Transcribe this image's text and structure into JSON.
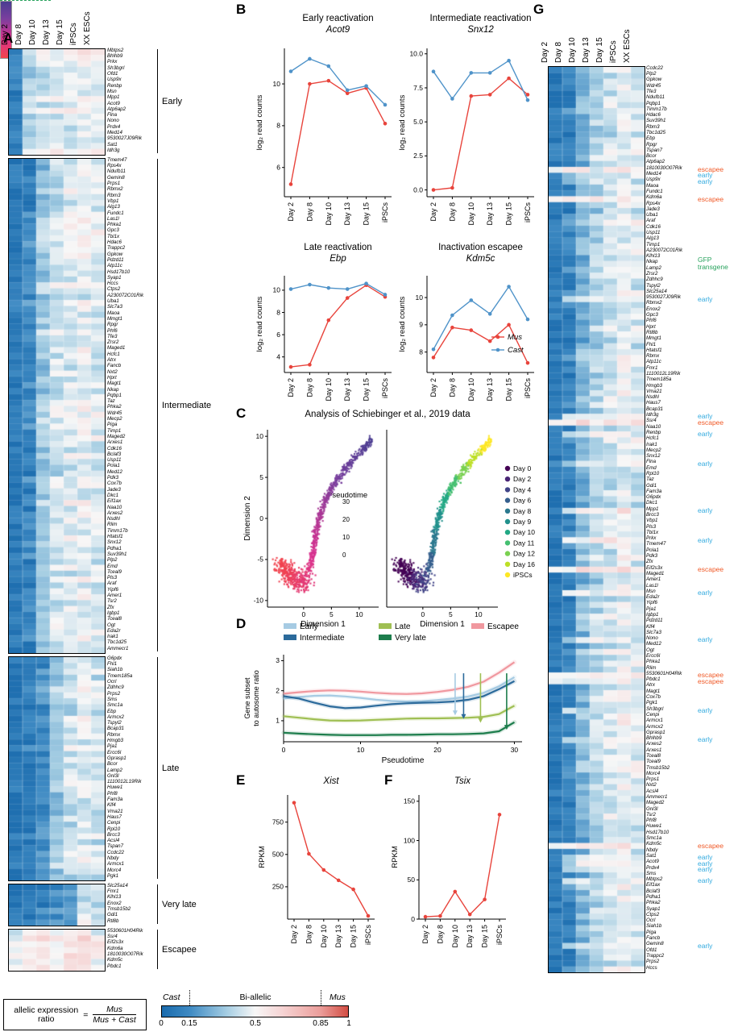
{
  "panels": {
    "a": "A",
    "b": "B",
    "c": "C",
    "d": "D",
    "e": "E",
    "f": "F",
    "g": "G"
  },
  "heatmap_columns": [
    "Day 2",
    "Day 8",
    "Day 10",
    "Day 13",
    "Day 15",
    "iPSCs",
    "XX ESCs"
  ],
  "xcats": [
    "Day 2",
    "Day 8",
    "Day 10",
    "Day 13",
    "Day 15",
    "iPSCs"
  ],
  "panel_a": {
    "groups": [
      {
        "label": "Early",
        "genes": [
          "Mbtps2",
          "Bhlhb9",
          "Prkx",
          "Sh3bgrl",
          "Ofd1",
          "Usp9x",
          "Renbp",
          "Msn",
          "Mpp1",
          "Acot9",
          "Atp6ap2",
          "Flna",
          "Nono",
          "Prdx4",
          "Med14",
          "9530027J09Rik",
          "Sat1",
          "Idh3g"
        ]
      },
      {
        "label": "Intermediate",
        "genes": [
          "Tmem47",
          "Rps4x",
          "Ndufb11",
          "Gemin8",
          "Prps1",
          "Rbmx2",
          "Rbm3",
          "Vbp1",
          "Alg13",
          "Fundc1",
          "Las1l",
          "Phka1",
          "Gpc3",
          "Tbl1x",
          "Hdac6",
          "Trappc2",
          "Gpkow",
          "Pdzd11",
          "Atp11c",
          "Hsd17b10",
          "Syap1",
          "Hccs",
          "Ctps2",
          "A230072C01Rik",
          "Uba1",
          "Slc7a3",
          "Maoa",
          "Mmgt1",
          "Rpgr",
          "Phf6",
          "Tfe3",
          "Zrsr2",
          "Maged1",
          "Hcfc1",
          "Atrx",
          "Fancb",
          "Nxt2",
          "Hprt",
          "Magt1",
          "Nkap",
          "Pqbp1",
          "Taz",
          "Phka2",
          "Wdr45",
          "Mecp2",
          "Piga",
          "Timp1",
          "Maged2",
          "Arxes1",
          "Cdk16",
          "Bclaf3",
          "Usp11",
          "Pola1",
          "Med12",
          "Pdk3",
          "Cox7b",
          "Jade3",
          "Dkc1",
          "Eif1ax",
          "Naa10",
          "Arxes2",
          "Nsdhl",
          "Rlim",
          "Timm17b",
          "Htatsf1",
          "Snx12",
          "Pdha1",
          "Suv39h1",
          "Plp2",
          "Emd",
          "Tceal9",
          "Pls3",
          "Araf",
          "Yipf6",
          "Amer1",
          "Tsr2",
          "Zfx",
          "Igbp1",
          "Tceal8",
          "Ogt",
          "Eda2r",
          "Irak1",
          "Tbc1d25",
          "Ammecr1"
        ]
      },
      {
        "label": "Late",
        "genes": [
          "G6pdx",
          "Fhl1",
          "Siah1b",
          "Tmem185a",
          "Ocrl",
          "Zdhhc9",
          "Prps2",
          "Sms",
          "Smc1a",
          "Ebp",
          "Armcx2",
          "Tspyl2",
          "Bcap31",
          "Rbmx",
          "Hmgb3",
          "Pja1",
          "Ercc6l",
          "Gprasp1",
          "Bcor",
          "Lamp2",
          "Gnl3l",
          "1110012L19Rik",
          "Huwe1",
          "Phf8",
          "Fam3a",
          "Klf4",
          "Vma21",
          "Haus7",
          "Cenpi",
          "Rpl10",
          "Brcc3",
          "Acsl4",
          "Tspan7",
          "Ccdc22",
          "Nbdy",
          "Armcx1",
          "Morc4",
          "Pgk1"
        ]
      },
      {
        "label": "Very late",
        "genes": [
          "Slc25a14",
          "Fmr1",
          "Klhl13",
          "Enox2",
          "Tmsb15b2",
          "Gdi1",
          "Rtl8b"
        ]
      },
      {
        "label": "Escapee",
        "genes": [
          "5530601H04Rik",
          "Ssr4",
          "Eif2s3x",
          "Kdm6a",
          "1810030O07Rik",
          "Kdm5c",
          "Pbdc1"
        ]
      }
    ]
  },
  "panel_g": {
    "genes": [
      "Ccdc22",
      "Plp2",
      "Gpkow",
      "Wdr45",
      "Tfe3",
      "Ndufb11",
      "Pqbp1",
      "Timm17b",
      "Hdac6",
      "Suv39h1",
      "Rbm3",
      "Tbc1d25",
      "Ebp",
      "Rpgr",
      "Tspan7",
      "Bcor",
      "Atp6ap2",
      "1810030O07Rik",
      "Med14",
      "Usp9x",
      "Maoa",
      "Fundc1",
      "Kdm6a",
      "Rps4x",
      "Jade3",
      "Uba1",
      "Araf",
      "Cdk16",
      "Usp11",
      "Alg13",
      "Timp1",
      "A230072C01Rik",
      "Klhl13",
      "Nkap",
      "Lamp2",
      "Zrsr2",
      "Zdhhc9",
      "Tspyl2",
      "Slc25a14",
      "9530027J09Rik",
      "Rbmx2",
      "Enox2",
      "Gpc3",
      "Phf6",
      "Hprt",
      "Rtl8b",
      "Mmgt1",
      "Fhl1",
      "Htatsf1",
      "Rbmx",
      "Atp11c",
      "Fmr1",
      "1110012L19Rik",
      "Tmem185a",
      "Hmgb3",
      "Vma21",
      "Nsdhl",
      "Haus7",
      "Bcap31",
      "Idh3g",
      "Ssr4",
      "Naa10",
      "Renbp",
      "Hcfc1",
      "Irak1",
      "Mecp2",
      "Snx12",
      "Flna",
      "Emd",
      "Rpl10",
      "Taz",
      "Gdi1",
      "Fam3a",
      "G6pdx",
      "Dkc1",
      "Mpp1",
      "Brcc3",
      "Vbp1",
      "Pls3",
      "Tbl1x",
      "Prkx",
      "Tmem47",
      "Pola1",
      "Pdk3",
      "Zfx",
      "Eif2s3x",
      "Maged1",
      "Amer1",
      "Las1l",
      "Msn",
      "Eda2r",
      "Yipf6",
      "Pja1",
      "Igbp1",
      "Pdzd11",
      "Klf4",
      "Slc7a3",
      "Nono",
      "Med12",
      "Ogt",
      "Ercc6l",
      "Phka1",
      "Rlim",
      "5530601H04Rik",
      "Pbdc1",
      "Atrx",
      "Magt1",
      "Cox7b",
      "Pgk1",
      "Sh3bgrl",
      "Cenpi",
      "Armcx1",
      "Armcx2",
      "Gprasp1",
      "Bhlhb9",
      "Arxes2",
      "Arxes1",
      "Tceal8",
      "Tceal9",
      "Tmsb15b2",
      "Morc4",
      "Prps1",
      "Nxt2",
      "Acsl4",
      "Ammecr1",
      "Maged2",
      "Gnl3l",
      "Tsr2",
      "Phf8",
      "Huwe1",
      "Hsd17b10",
      "Smc1a",
      "Kdm5c",
      "Nbdy",
      "Sat1",
      "Acot9",
      "Prdx4",
      "Sms",
      "Mbtps2",
      "Eif1ax",
      "Bclaf3",
      "Pdha1",
      "Phka2",
      "Syap1",
      "Ctps2",
      "Ocrl",
      "Siah1b",
      "Piga",
      "Fancb",
      "Gemin8",
      "Ofd1",
      "Trappc2",
      "Prps2",
      "Hccs"
    ],
    "annotations": [
      {
        "row": 17,
        "type": "escapee"
      },
      {
        "row": 18,
        "type": "early"
      },
      {
        "row": 19,
        "type": "early"
      },
      {
        "row": 22,
        "type": "escapee"
      },
      {
        "row": 33,
        "type": "gfp"
      },
      {
        "row": 39,
        "type": "early"
      },
      {
        "row": 59,
        "type": "early"
      },
      {
        "row": 60,
        "type": "escapee"
      },
      {
        "row": 62,
        "type": "early"
      },
      {
        "row": 67,
        "type": "early"
      },
      {
        "row": 75,
        "type": "early"
      },
      {
        "row": 80,
        "type": "early"
      },
      {
        "row": 85,
        "type": "escapee"
      },
      {
        "row": 89,
        "type": "early"
      },
      {
        "row": 97,
        "type": "early"
      },
      {
        "row": 103,
        "type": "escapee"
      },
      {
        "row": 104,
        "type": "escapee"
      },
      {
        "row": 109,
        "type": "early"
      },
      {
        "row": 114,
        "type": "early"
      },
      {
        "row": 132,
        "type": "escapee"
      },
      {
        "row": 134,
        "type": "early"
      },
      {
        "row": 135,
        "type": "early"
      },
      {
        "row": 136,
        "type": "early"
      },
      {
        "row": 138,
        "type": "early"
      },
      {
        "row": 149,
        "type": "early"
      }
    ],
    "annotation_labels": {
      "early": "early",
      "escapee": "escapee",
      "gfp_line1": "GFP",
      "gfp_line2": "transgene"
    }
  },
  "heatmap_profiles": {
    "Early": [
      0.1,
      0.38,
      0.44,
      0.47,
      0.48,
      0.52,
      0.47
    ],
    "Intermediate": [
      0.07,
      0.13,
      0.33,
      0.42,
      0.45,
      0.48,
      0.45
    ],
    "Late": [
      0.06,
      0.09,
      0.17,
      0.33,
      0.42,
      0.47,
      0.43
    ],
    "Very late": [
      0.06,
      0.07,
      0.09,
      0.13,
      0.22,
      0.44,
      0.4
    ],
    "Escapee": [
      0.46,
      0.52,
      0.55,
      0.52,
      0.54,
      0.57,
      0.52
    ],
    "G-default": [
      0.07,
      0.12,
      0.28,
      0.38,
      0.43,
      0.47,
      0.44
    ]
  },
  "chart_data": [
    {
      "id": "acot9",
      "type": "line",
      "title": "Early reactivation",
      "gene": "Acot9",
      "ylabel": "log₂ read counts",
      "x": [
        "Day 2",
        "Day 8",
        "Day 10",
        "Day 13",
        "Day 15",
        "iPSCs"
      ],
      "series": [
        {
          "name": "Mus",
          "color": "#e8443c",
          "values": [
            5.2,
            10,
            10.15,
            9.55,
            9.8,
            8.1
          ]
        },
        {
          "name": "Cast",
          "color": "#4f93c9",
          "values": [
            10.6,
            11.2,
            10.85,
            9.7,
            9.9,
            9
          ]
        }
      ],
      "ylim": [
        4.6,
        11.7
      ],
      "yticks": [
        6,
        8,
        10
      ]
    },
    {
      "id": "snx12",
      "type": "line",
      "title": "Intermediate reactivation",
      "gene": "Snx12",
      "ylabel": "log₂ read counts",
      "x": [
        "Day 2",
        "Day 8",
        "Day 10",
        "Day 13",
        "Day 15",
        "iPSCs"
      ],
      "series": [
        {
          "name": "Mus",
          "color": "#e8443c",
          "values": [
            0,
            0.15,
            6.9,
            7,
            8.2,
            7
          ]
        },
        {
          "name": "Cast",
          "color": "#4f93c9",
          "values": [
            8.7,
            6.7,
            8.6,
            8.6,
            9.5,
            6.6
          ]
        }
      ],
      "ylim": [
        -0.5,
        10.4
      ],
      "yticks": [
        "0.0",
        "2.5",
        "5.0",
        "7.5",
        "10.0"
      ]
    },
    {
      "id": "ebp",
      "type": "line",
      "title": "Late reactivation",
      "gene": "Ebp",
      "ylabel": "log₂ read counts",
      "x": [
        "Day 2",
        "Day 8",
        "Day 10",
        "Day 13",
        "Day 15",
        "iPSCs"
      ],
      "series": [
        {
          "name": "Mus",
          "color": "#e8443c",
          "values": [
            3.1,
            3.3,
            7.3,
            9.3,
            10.45,
            9.4
          ]
        },
        {
          "name": "Cast",
          "color": "#4f93c9",
          "values": [
            10.1,
            10.5,
            10.2,
            10.1,
            10.6,
            9.6
          ]
        }
      ],
      "ylim": [
        2.6,
        11.3
      ],
      "yticks": [
        4,
        6,
        8,
        10
      ]
    },
    {
      "id": "kdm5c",
      "type": "line",
      "title": "Inactivation escapee",
      "gene": "Kdm5c",
      "ylabel": "log₂ read counts",
      "x": [
        "Day 2",
        "Day 8",
        "Day 10",
        "Day 13",
        "Day 15",
        "iPSCs"
      ],
      "series": [
        {
          "name": "Mus",
          "color": "#e8443c",
          "values": [
            7.8,
            8.9,
            8.8,
            8.4,
            9,
            7.6
          ]
        },
        {
          "name": "Cast",
          "color": "#4f93c9",
          "values": [
            8.1,
            9.35,
            9.9,
            9.4,
            10.4,
            9.2
          ]
        }
      ],
      "ylim": [
        7.25,
        10.8
      ],
      "yticks": [
        8,
        9,
        10
      ]
    },
    {
      "id": "schiebinger",
      "type": "scatter",
      "title": "Analysis of Schiebinger et al., 2019 data",
      "xlabel": "Dimension 1",
      "ylabel": "Dimension 2",
      "xticks": [
        0,
        5,
        10
      ],
      "yticks": [
        -10,
        -5,
        0,
        5,
        10
      ],
      "pseudotime": {
        "title": "Pseudotime",
        "ticks": [
          30,
          20,
          10,
          0
        ]
      },
      "day_legend": [
        "Day 0",
        "Day 2",
        "Day 4",
        "Day 6",
        "Day 8",
        "Day 9",
        "Day 10",
        "Day 11",
        "Day 12",
        "Day 16",
        "iPSCs"
      ]
    },
    {
      "id": "gene-subset-ratio",
      "type": "line",
      "xlabel": "Pseudotime",
      "ylabel_line1": "Gene subset",
      "ylabel_line2": "to autosome ratio",
      "x": [
        0,
        2,
        4,
        6,
        8,
        10,
        12,
        14,
        16,
        18,
        20,
        22,
        24,
        26,
        28,
        30
      ],
      "xticks": [
        0,
        10,
        20,
        30
      ],
      "yticks": [
        1,
        2,
        3
      ],
      "ylim": [
        0.3,
        3.2
      ],
      "xlim": [
        0,
        31
      ],
      "legend_rows": [
        [
          "Early",
          "Late",
          "Escapee"
        ],
        [
          "Intermediate",
          "Very late"
        ]
      ],
      "series": [
        {
          "name": "Escapee",
          "values": [
            1.9,
            1.95,
            1.99,
            2.01,
            2,
            1.97,
            1.93,
            1.9,
            1.89,
            1.91,
            1.96,
            2.03,
            2.13,
            2.3,
            2.6,
            2.95
          ]
        },
        {
          "name": "Early",
          "values": [
            1.74,
            1.79,
            1.83,
            1.84,
            1.81,
            1.76,
            1.7,
            1.66,
            1.64,
            1.65,
            1.69,
            1.74,
            1.81,
            1.93,
            2.15,
            2.45
          ]
        },
        {
          "name": "Intermediate",
          "values": [
            1.82,
            1.74,
            1.6,
            1.48,
            1.42,
            1.44,
            1.5,
            1.55,
            1.58,
            1.6,
            1.61,
            1.64,
            1.7,
            1.82,
            2.05,
            2.32
          ]
        },
        {
          "name": "Late",
          "values": [
            1.15,
            1.1,
            1.05,
            1.01,
            1,
            1.01,
            1.03,
            1.05,
            1.07,
            1.08,
            1.08,
            1.09,
            1.1,
            1.13,
            1.22,
            1.5
          ]
        },
        {
          "name": "Very late",
          "values": [
            0.6,
            0.57,
            0.55,
            0.53,
            0.52,
            0.52,
            0.52,
            0.53,
            0.53,
            0.54,
            0.55,
            0.55,
            0.56,
            0.58,
            0.65,
            0.95
          ]
        }
      ],
      "arrows": [
        {
          "x": 22.3,
          "series": "Early",
          "top": 2.58,
          "tip": 1.18
        },
        {
          "x": 23.4,
          "series": "Intermediate",
          "top": 2.58,
          "tip": 1.06
        },
        {
          "x": 25.6,
          "series": "Late",
          "top": 2.58,
          "tip": 0.93
        },
        {
          "x": 29,
          "series": "Very late",
          "top": 2.58,
          "tip": 0.7
        }
      ]
    },
    {
      "id": "xist",
      "type": "line",
      "gene": "Xist",
      "ylabel": "RPKM",
      "x": [
        "Day 2",
        "Day 8",
        "Day 10",
        "Day 13",
        "Day 15",
        "iPSCs"
      ],
      "series": [
        {
          "name": "Mus",
          "color": "#e8443c",
          "values": [
            900,
            505,
            380,
            300,
            230,
            25
          ]
        }
      ],
      "ylim": [
        0,
        960
      ],
      "yticks": [
        250,
        500,
        750
      ]
    },
    {
      "id": "tsix",
      "type": "line",
      "gene": "Tsix",
      "ylabel": "RPKM",
      "x": [
        "Day 2",
        "Day 8",
        "Day 10",
        "Day 13",
        "Day 15",
        "iPSCs"
      ],
      "series": [
        {
          "name": "Mus",
          "color": "#e8443c",
          "values": [
            3,
            4,
            35,
            6,
            25,
            133
          ]
        }
      ],
      "ylim": [
        0,
        158
      ],
      "yticks": [
        0,
        50,
        100,
        150
      ]
    }
  ],
  "colorbar": {
    "cast": "Cast",
    "biallelic": "Bi-allelic",
    "mus": "Mus",
    "ticks": [
      "0",
      "0.15",
      "0.5",
      "0.85",
      "1"
    ]
  },
  "formula": {
    "lhs1": "allelic expression",
    "lhs2": "ratio",
    "eq": "=",
    "num": "Mus",
    "den": "Mus + Cast"
  },
  "colors": {
    "mus_red": "#e8443c",
    "cast_blue": "#4f93c9",
    "ratio_stops": [
      [
        0,
        "#1a6bad"
      ],
      [
        0.15,
        "#3e8ac3"
      ],
      [
        0.35,
        "#a6cee3"
      ],
      [
        0.5,
        "#f7f7f7"
      ],
      [
        0.65,
        "#f6d3d3"
      ],
      [
        0.85,
        "#eb9e9b"
      ],
      [
        1,
        "#d24d43"
      ]
    ],
    "pseudotime_stops": [
      [
        0,
        "#f2444c"
      ],
      [
        0.35,
        "#d9318e"
      ],
      [
        0.7,
        "#7a3f9e"
      ],
      [
        1,
        "#4a3d91"
      ]
    ],
    "day_colors": [
      "#440154",
      "#482475",
      "#414487",
      "#355f8d",
      "#2a788e",
      "#21918c",
      "#22a884",
      "#44bf70",
      "#7ad151",
      "#bddf26",
      "#fde725"
    ],
    "subset": {
      "Early": "#a6cbe3",
      "Intermediate": "#2b6a9b",
      "Late": "#9fbf53",
      "Very late": "#1d7d4c",
      "Escapee": "#f0989f"
    },
    "annotation": {
      "early": "#32aadf",
      "escapee": "#f05a28",
      "gfp": "#27a25c"
    }
  }
}
